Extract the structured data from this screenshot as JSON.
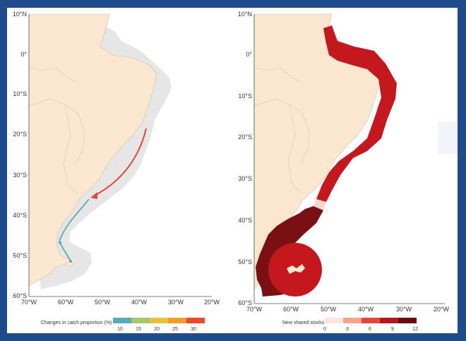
{
  "colors": {
    "frame_border": "#1f4a8c",
    "land": "#fbe6cf",
    "shelf": "#e6e6e6",
    "red_arrow": "#e0473a",
    "blue_arrow": "#5aa9b6",
    "dark_red": "#7a0f14",
    "mid_red": "#c4181e",
    "light_pink": "#f9d6cc"
  },
  "left_map": {
    "lat_labels": [
      "10°N",
      "0°",
      "10°S",
      "20°S",
      "30°S",
      "40°S",
      "50°S",
      "60°S"
    ],
    "lon_labels": [
      "70°W",
      "60°W",
      "50°W",
      "40°W",
      "30°W",
      "20°W"
    ],
    "legend": {
      "title": "Changes in catch proportion (%)",
      "ticks": [
        "10",
        "15",
        "20",
        "25",
        "30"
      ],
      "colors": [
        "#5aa9b6",
        "#a9c46a",
        "#e6c23a",
        "#f29b2f",
        "#e84a2a"
      ]
    }
  },
  "right_map": {
    "lat_labels": [
      "10°N",
      "0°",
      "10°S",
      "20°S",
      "30°S",
      "40°S",
      "50°S",
      "60°S"
    ],
    "lon_labels": [
      "70°W",
      "60°W",
      "50°W",
      "40°W",
      "30°W",
      "20°W"
    ],
    "legend": {
      "title": "New shared stocks",
      "ticks": [
        "0",
        "3",
        "6",
        "9",
        "12"
      ],
      "colors": [
        "#fde4dc",
        "#f4a48e",
        "#e0493a",
        "#b3161e",
        "#6b0b0f"
      ]
    }
  }
}
